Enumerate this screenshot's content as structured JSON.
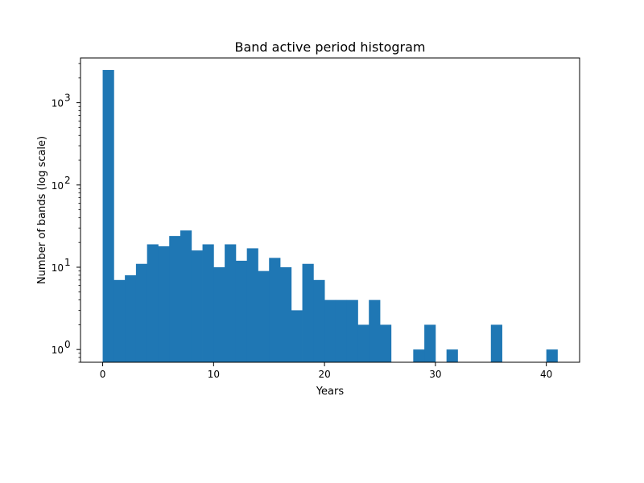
{
  "chart_data": {
    "type": "bar",
    "title": "Band active period histogram",
    "xlabel": "Years",
    "ylabel": "Number of bands (log scale)",
    "y_scale": "log",
    "xlim": [
      -2,
      43
    ],
    "ylim": [
      0.7,
      3500
    ],
    "x_ticks": [
      0,
      10,
      20,
      30,
      40
    ],
    "x_tick_labels": [
      "0",
      "10",
      "20",
      "30",
      "40"
    ],
    "y_ticks": [
      1,
      10,
      100,
      1000
    ],
    "y_tick_labels": [
      "10",
      "10",
      "10",
      "10"
    ],
    "y_tick_exponents": [
      "0",
      "1",
      "2",
      "3"
    ],
    "bin_edges": [
      0,
      1,
      2,
      3,
      4,
      5,
      6,
      7,
      8,
      9,
      10,
      11,
      12,
      13,
      14,
      15,
      16,
      17,
      18,
      19,
      20,
      21,
      22,
      23,
      24,
      25,
      26,
      27,
      28,
      29,
      30,
      31,
      32,
      33,
      34,
      35,
      36,
      37,
      38,
      39,
      40,
      41
    ],
    "values": [
      2500,
      7,
      8,
      11,
      19,
      18,
      24,
      28,
      16,
      19,
      10,
      19,
      12,
      17,
      9,
      13,
      10,
      3,
      11,
      7,
      4,
      4,
      4,
      2,
      4,
      2,
      0,
      0,
      1,
      2,
      0,
      1,
      0,
      0,
      0,
      2,
      0,
      0,
      0,
      0,
      1
    ],
    "bar_color": "#1f77b4",
    "grid": false,
    "legend": "none"
  }
}
